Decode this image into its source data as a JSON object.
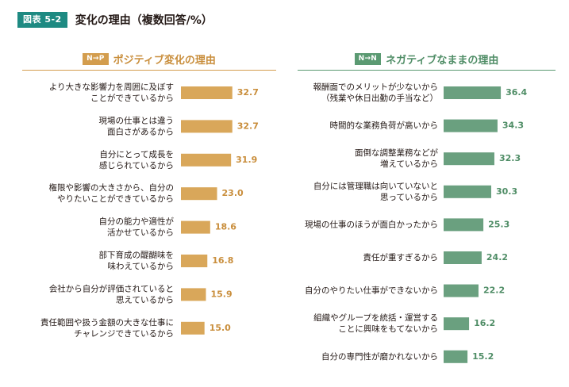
{
  "figure": {
    "tag": "図表 5-2",
    "title": "変化の理由（複数回答/%）"
  },
  "colors": {
    "left": "#d9a75a",
    "left_text": "#c98e3c",
    "right": "#6aa07f",
    "right_text": "#4f8d66"
  },
  "chart_data": [
    {
      "type": "bar",
      "orientation": "horizontal",
      "badge": "N→P",
      "title": "ポジティブ変化の理由",
      "categories": [
        [
          "より大きな影響力を周囲に及ぼす",
          "ことができているから"
        ],
        [
          "現場の仕事とは違う",
          "面白さがあるから"
        ],
        [
          "自分にとって成長を",
          "感じられているから"
        ],
        [
          "権限や影響の大きさから、自分の",
          "やりたいことができているから"
        ],
        [
          "自分の能力や適性が",
          "活かせているから"
        ],
        [
          "部下育成の醍醐味を",
          "味わえているから"
        ],
        [
          "会社から自分が評価されていると",
          "思えているから"
        ],
        [
          "責任範囲や扱う金額の大きな仕事に",
          "チャレンジできているから"
        ]
      ],
      "values": [
        32.7,
        32.7,
        31.9,
        23.0,
        18.6,
        16.8,
        15.9,
        15.0
      ],
      "value_labels": [
        "32.7",
        "32.7",
        "31.9",
        "23.0",
        "18.6",
        "16.8",
        "15.9",
        "15.0"
      ]
    },
    {
      "type": "bar",
      "orientation": "horizontal",
      "badge": "N→N",
      "title": "ネガティブなままの理由",
      "categories": [
        [
          "報酬面でのメリットが少ないから",
          "（残業や休日出勤の手当など）"
        ],
        [
          "時間的な業務負荷が高いから"
        ],
        [
          "面倒な調整業務などが",
          "増えているから"
        ],
        [
          "自分には管理職は向いていないと",
          "思っているから"
        ],
        [
          "現場の仕事のほうが面白かったから"
        ],
        [
          "責任が重すぎるから"
        ],
        [
          "自分のやりたい仕事ができないから"
        ],
        [
          "組織やグループを統括・運営する",
          "ことに興味をもてないから"
        ],
        [
          "自分の専門性が磨かれないから"
        ]
      ],
      "values": [
        36.4,
        34.3,
        32.3,
        30.3,
        25.3,
        24.2,
        22.2,
        16.2,
        15.2
      ],
      "value_labels": [
        "36.4",
        "34.3",
        "32.3",
        "30.3",
        "25.3",
        "24.2",
        "22.2",
        "16.2",
        "15.2"
      ]
    }
  ]
}
